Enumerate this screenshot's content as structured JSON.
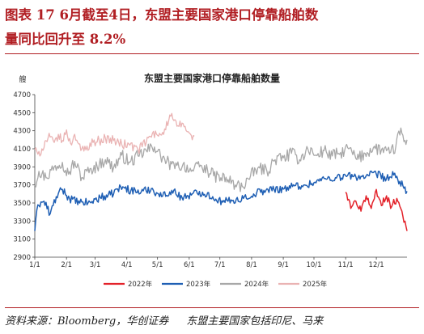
{
  "figure": {
    "title_line1": "图表 17   6月截至4日，东盟主要国家港口停靠船舶数",
    "title_line2": "量同比回升至 8.2%",
    "source": "资料来源：Bloomberg，华创证券",
    "note": "东盟主要国家包括印尼、马来"
  },
  "colors": {
    "accent": "#b11e23",
    "series_2022": "#e3222a",
    "series_2023": "#1f5fb4",
    "series_2024": "#a8a8a8",
    "series_2025": "#eab3b3"
  },
  "chart_data": {
    "type": "line",
    "title": "东盟主要国家港口停靠船舶数量",
    "ylabel": "艘",
    "xlabel": "",
    "ylim": [
      2900,
      4700
    ],
    "yticks": [
      "2900",
      "3100",
      "3300",
      "3500",
      "3700",
      "3900",
      "4100",
      "4300",
      "4500",
      "4700"
    ],
    "xticks": [
      "1/1",
      "2/1",
      "3/1",
      "4/1",
      "5/1",
      "6/1",
      "7/1",
      "8/1",
      "9/1",
      "10/1",
      "11/1",
      "12/1"
    ],
    "x_unit": "day of year",
    "grid": false,
    "legend_position": "bottom",
    "series": [
      {
        "name": "2022年",
        "color_key": "series_2022",
        "anchors": [
          [
            305,
            3620
          ],
          [
            310,
            3440
          ],
          [
            315,
            3520
          ],
          [
            320,
            3410
          ],
          [
            325,
            3580
          ],
          [
            330,
            3440
          ],
          [
            335,
            3650
          ],
          [
            340,
            3470
          ],
          [
            345,
            3580
          ],
          [
            350,
            3460
          ],
          [
            355,
            3550
          ],
          [
            360,
            3410
          ],
          [
            365,
            3190
          ]
        ]
      },
      {
        "name": "2023年",
        "color_key": "series_2023",
        "anchors": [
          [
            1,
            3190
          ],
          [
            4,
            3480
          ],
          [
            10,
            3520
          ],
          [
            16,
            3380
          ],
          [
            22,
            3570
          ],
          [
            28,
            3650
          ],
          [
            35,
            3550
          ],
          [
            45,
            3500
          ],
          [
            55,
            3510
          ],
          [
            65,
            3560
          ],
          [
            75,
            3590
          ],
          [
            85,
            3680
          ],
          [
            95,
            3640
          ],
          [
            105,
            3620
          ],
          [
            115,
            3660
          ],
          [
            125,
            3570
          ],
          [
            135,
            3640
          ],
          [
            145,
            3560
          ],
          [
            155,
            3600
          ],
          [
            165,
            3620
          ],
          [
            175,
            3570
          ],
          [
            185,
            3510
          ],
          [
            195,
            3530
          ],
          [
            205,
            3550
          ],
          [
            215,
            3600
          ],
          [
            225,
            3640
          ],
          [
            235,
            3650
          ],
          [
            245,
            3660
          ],
          [
            255,
            3690
          ],
          [
            265,
            3700
          ],
          [
            275,
            3730
          ],
          [
            285,
            3770
          ],
          [
            295,
            3780
          ],
          [
            305,
            3800
          ],
          [
            315,
            3790
          ],
          [
            325,
            3800
          ],
          [
            335,
            3820
          ],
          [
            345,
            3770
          ],
          [
            352,
            3810
          ],
          [
            358,
            3740
          ],
          [
            365,
            3630
          ]
        ]
      },
      {
        "name": "2024年",
        "color_key": "series_2024",
        "anchors": [
          [
            1,
            3700
          ],
          [
            5,
            3850
          ],
          [
            12,
            3780
          ],
          [
            20,
            3900
          ],
          [
            28,
            3950
          ],
          [
            34,
            3820
          ],
          [
            40,
            3960
          ],
          [
            47,
            3780
          ],
          [
            55,
            3880
          ],
          [
            62,
            3900
          ],
          [
            70,
            3980
          ],
          [
            78,
            3890
          ],
          [
            86,
            4030
          ],
          [
            94,
            3950
          ],
          [
            102,
            4020
          ],
          [
            110,
            4080
          ],
          [
            118,
            4120
          ],
          [
            124,
            4020
          ],
          [
            130,
            3960
          ],
          [
            138,
            3880
          ],
          [
            146,
            3930
          ],
          [
            154,
            3850
          ],
          [
            162,
            3900
          ],
          [
            170,
            3860
          ],
          [
            176,
            3800
          ],
          [
            183,
            3780
          ],
          [
            190,
            3760
          ],
          [
            197,
            3700
          ],
          [
            204,
            3680
          ],
          [
            212,
            3800
          ],
          [
            220,
            3900
          ],
          [
            228,
            3850
          ],
          [
            236,
            3980
          ],
          [
            244,
            4000
          ],
          [
            252,
            4050
          ],
          [
            260,
            3980
          ],
          [
            268,
            4100
          ],
          [
            276,
            4030
          ],
          [
            284,
            4080
          ],
          [
            292,
            4020
          ],
          [
            300,
            4060
          ],
          [
            308,
            4100
          ],
          [
            316,
            3980
          ],
          [
            324,
            4050
          ],
          [
            332,
            4110
          ],
          [
            340,
            4090
          ],
          [
            348,
            4050
          ],
          [
            354,
            4120
          ],
          [
            359,
            4330
          ],
          [
            362,
            4180
          ],
          [
            365,
            4200
          ]
        ]
      },
      {
        "name": "2025年",
        "color_key": "series_2025",
        "anchors": [
          [
            1,
            4090
          ],
          [
            4,
            4040
          ],
          [
            8,
            4100
          ],
          [
            12,
            4190
          ],
          [
            16,
            4230
          ],
          [
            20,
            4170
          ],
          [
            24,
            4260
          ],
          [
            28,
            4190
          ],
          [
            32,
            4310
          ],
          [
            36,
            4160
          ],
          [
            40,
            4260
          ],
          [
            46,
            4080
          ],
          [
            52,
            4130
          ],
          [
            58,
            4170
          ],
          [
            64,
            4190
          ],
          [
            70,
            4220
          ],
          [
            78,
            4190
          ],
          [
            86,
            4150
          ],
          [
            94,
            4140
          ],
          [
            102,
            4090
          ],
          [
            110,
            4170
          ],
          [
            116,
            4270
          ],
          [
            122,
            4240
          ],
          [
            128,
            4320
          ],
          [
            134,
            4460
          ],
          [
            140,
            4350
          ],
          [
            146,
            4380
          ],
          [
            150,
            4290
          ],
          [
            155,
            4200
          ],
          [
            157,
            4240
          ]
        ]
      }
    ]
  }
}
